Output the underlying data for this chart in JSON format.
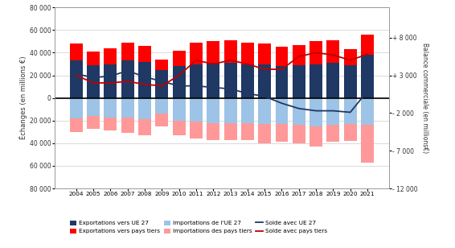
{
  "years": [
    2004,
    2005,
    2006,
    2007,
    2008,
    2009,
    2010,
    2011,
    2012,
    2013,
    2014,
    2015,
    2016,
    2017,
    2018,
    2019,
    2020,
    2021
  ],
  "exp_UE27": [
    33000,
    29000,
    30000,
    33000,
    32000,
    25000,
    28000,
    30000,
    31000,
    31000,
    30000,
    30000,
    28000,
    29000,
    30000,
    31000,
    29000,
    38000
  ],
  "exp_pays": [
    15000,
    12000,
    14000,
    16000,
    14000,
    9000,
    14000,
    19000,
    19000,
    20000,
    19000,
    18000,
    17000,
    18000,
    20000,
    20000,
    14000,
    18000
  ],
  "imp_UE27": [
    -18000,
    -16000,
    -17000,
    -17000,
    -19000,
    -14000,
    -20000,
    -21000,
    -22000,
    -22000,
    -22000,
    -23000,
    -23000,
    -24000,
    -25000,
    -24000,
    -23000,
    -24000
  ],
  "imp_pays": [
    -12000,
    -11000,
    -12000,
    -14000,
    -14000,
    -11000,
    -13000,
    -15000,
    -15000,
    -15000,
    -15000,
    -17000,
    -16000,
    -16000,
    -18000,
    -15000,
    -15000,
    -33000
  ],
  "solde_UE27_right": [
    3200,
    2700,
    2900,
    3600,
    2800,
    2200,
    1600,
    1600,
    1400,
    1200,
    600,
    200,
    -700,
    -1400,
    -1700,
    -1700,
    -1900,
    900
  ],
  "solde_pays_right": [
    3000,
    2000,
    2000,
    2200,
    1800,
    1600,
    3000,
    5000,
    4500,
    5000,
    4500,
    3800,
    3800,
    5500,
    6000,
    5700,
    5000,
    5800
  ],
  "color_exp_UE27": "#1F3864",
  "color_exp_pays": "#FF0000",
  "color_imp_UE27": "#9DC3E6",
  "color_imp_pays": "#FF9999",
  "color_solde_UE27": "#1F3864",
  "color_solde_pays": "#C00000",
  "ylabel_left": "Échanges (en millions €)",
  "ylabel_right": "Balance commerciale (en millions€)",
  "ylim_left": [
    -80000,
    80000
  ],
  "ylim_right": [
    -12000,
    10666
  ],
  "yticks_left": [
    -80000,
    -60000,
    -40000,
    -20000,
    0,
    20000,
    40000,
    60000,
    80000
  ],
  "yticks_left_labels": [
    "80 000",
    "60 000",
    "40 000",
    "20 000",
    "0",
    "20 000",
    "40 000",
    "60 000",
    "80 000"
  ],
  "yticks_right": [
    8000,
    3000,
    -2000,
    -7000,
    -12000
  ],
  "yticks_right_labels": [
    "+ 8 000",
    "+ 3 000",
    "- 2 000",
    "- 7 000",
    "- 12 000"
  ],
  "legend_entries": [
    {
      "label": "Exportations vers UE 27",
      "color": "#1F3864",
      "type": "bar"
    },
    {
      "label": "Exportations vers pays tiers",
      "color": "#FF0000",
      "type": "bar"
    },
    {
      "label": "Importations de l'UE 27",
      "color": "#9DC3E6",
      "type": "bar"
    },
    {
      "label": "Importations des pays tiers",
      "color": "#FF9999",
      "type": "bar"
    },
    {
      "label": "Solde avec UE 27",
      "color": "#1F3864",
      "type": "line"
    },
    {
      "label": "Solde avec pays tiers",
      "color": "#C00000",
      "type": "line"
    }
  ],
  "bg_color": "#FFFFFF",
  "grid_color": "#CCCCCC"
}
